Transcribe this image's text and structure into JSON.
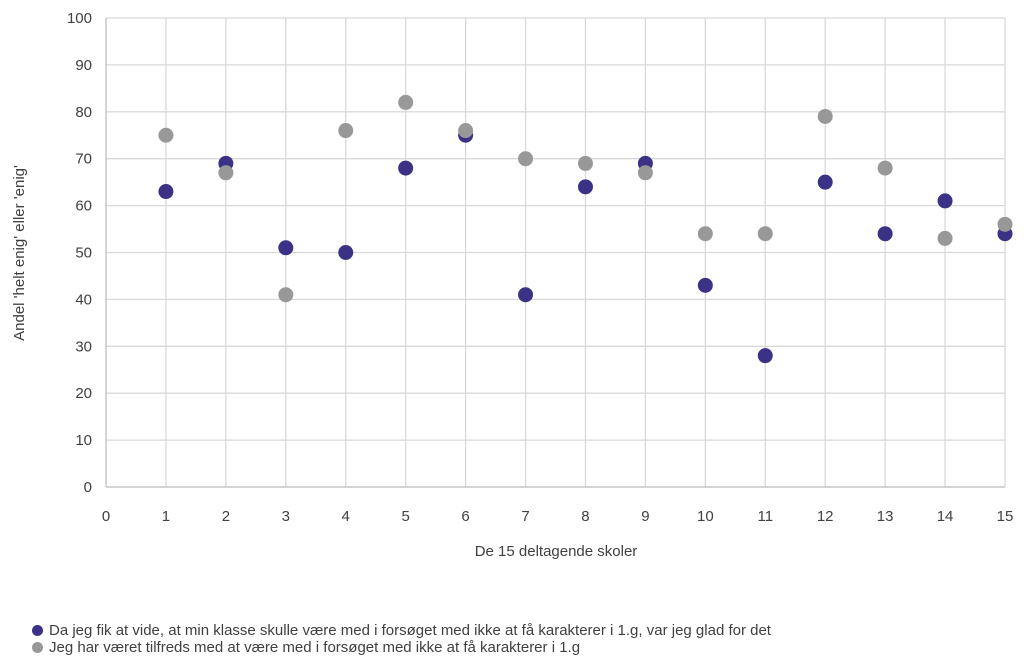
{
  "chart_data": {
    "type": "scatter",
    "xlabel": "De 15 deltagende skoler",
    "ylabel": "Andel 'helt enig' eller 'enig'",
    "xlim": [
      0,
      15
    ],
    "ylim": [
      0,
      100
    ],
    "xticks": [
      "0",
      "1",
      "2",
      "3",
      "4",
      "5",
      "6",
      "7",
      "8",
      "9",
      "10",
      "11",
      "12",
      "13",
      "14",
      "15"
    ],
    "yticks": [
      "0",
      "10",
      "20",
      "30",
      "40",
      "50",
      "60",
      "70",
      "80",
      "90",
      "100"
    ],
    "grid": true,
    "legend_position": "bottom",
    "series": [
      {
        "name": "Da jeg fik at vide, at min klasse skulle være med i forsøget med ikke at få karakterer i 1.g, var jeg glad for det",
        "color": "#3b3285",
        "x": [
          1,
          2,
          3,
          4,
          5,
          6,
          7,
          8,
          9,
          10,
          11,
          12,
          13,
          14,
          15
        ],
        "y": [
          63,
          69,
          51,
          50,
          68,
          75,
          41,
          64,
          69,
          43,
          28,
          65,
          54,
          61,
          54
        ]
      },
      {
        "name": "Jeg har været tilfreds med at være med i forsøget med ikke at få karakterer i 1.g",
        "color": "#989898",
        "x": [
          1,
          2,
          3,
          4,
          5,
          6,
          7,
          8,
          9,
          10,
          11,
          12,
          13,
          14,
          15
        ],
        "y": [
          75,
          67,
          41,
          76,
          82,
          76,
          70,
          69,
          67,
          54,
          54,
          79,
          68,
          53,
          56
        ]
      }
    ]
  }
}
